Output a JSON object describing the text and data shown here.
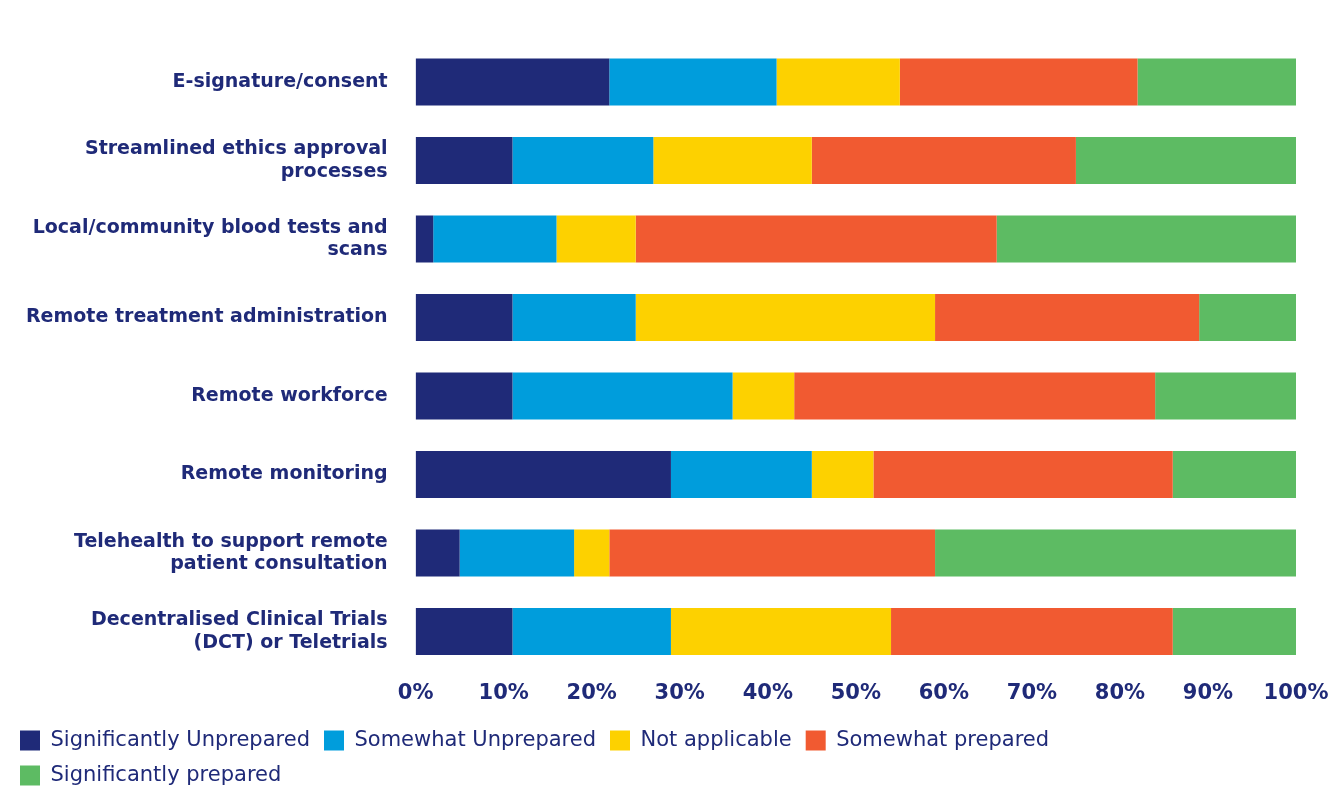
{
  "chart_data": {
    "type": "bar",
    "orientation": "horizontal",
    "stacked": true,
    "categories": [
      "E-signature/consent",
      "Streamlined ethics approval processes",
      "Local/community blood tests and scans",
      "Remote treatment administration",
      "Remote workforce",
      "Remote monitoring",
      "Telehealth to support remote patient consultation",
      "Decentralised Clinical Trials (DCT) or Teletrials"
    ],
    "series": [
      {
        "name": "Significantly Unprepared",
        "color": "#1f2a78",
        "values": [
          22,
          11,
          2,
          11,
          11,
          29,
          5,
          11
        ]
      },
      {
        "name": "Somewhat Unprepared",
        "color": "#009ddc",
        "values": [
          19,
          16,
          14,
          14,
          25,
          16,
          13,
          18
        ]
      },
      {
        "name": "Not applicable",
        "color": "#fdd100",
        "values": [
          14,
          18,
          9,
          34,
          7,
          7,
          4,
          25
        ]
      },
      {
        "name": "Somewhat prepared",
        "color": "#f15a31",
        "values": [
          27,
          30,
          41,
          30,
          41,
          34,
          37,
          32
        ]
      },
      {
        "name": "Significantly prepared",
        "color": "#5dbb63",
        "values": [
          18,
          25,
          34,
          11,
          16,
          14,
          41,
          14
        ]
      }
    ],
    "xlim": [
      0,
      100
    ],
    "xticks": [
      {
        "value": 0,
        "label": "0%"
      },
      {
        "value": 10,
        "label": "10%"
      },
      {
        "value": 20,
        "label": "20%"
      },
      {
        "value": 30,
        "label": "30%"
      },
      {
        "value": 40,
        "label": "40%"
      },
      {
        "value": 50,
        "label": "50%"
      },
      {
        "value": 60,
        "label": "60%"
      },
      {
        "value": 70,
        "label": "70%"
      },
      {
        "value": 80,
        "label": "80%"
      },
      {
        "value": 90,
        "label": "90%"
      },
      {
        "value": 100,
        "label": "100%"
      }
    ],
    "grid": false,
    "legend": "bottom"
  }
}
